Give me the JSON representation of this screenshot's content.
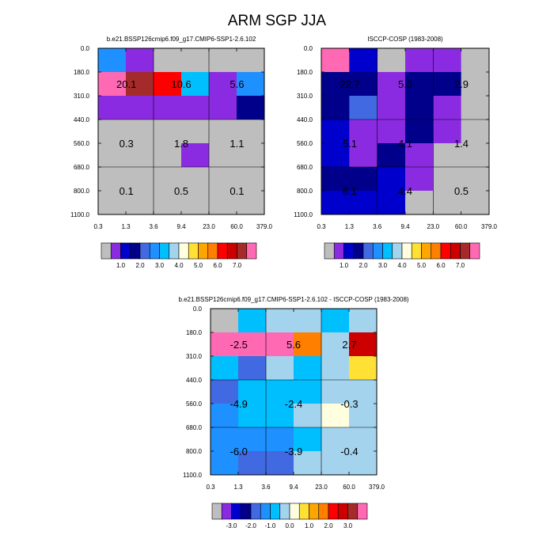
{
  "figure": {
    "title": "ARM SGP JJA"
  },
  "chart_data": [
    {
      "type": "heatmap",
      "title": "b.e21.BSSP126cmip6.f09_g17.CMIP6-SSP1-2.6.102",
      "x_ticks": [
        "0.3",
        "1.3",
        "3.6",
        "9.4",
        "23.0",
        "60.0",
        "379.0"
      ],
      "y_ticks": [
        "0.0",
        "180.0",
        "310.0",
        "440.0",
        "560.0",
        "680.0",
        "800.0",
        "1100.0"
      ],
      "cell_colors": [
        [
          "#1E90FF",
          "#8A2BE2",
          "#BEBEBE",
          "#BEBEBE",
          "#BEBEBE",
          "#BEBEBE"
        ],
        [
          "#FF69B4",
          "#A52A2A",
          "#FF0000",
          "#00BFFF",
          "#8A2BE2",
          "#1E90FF"
        ],
        [
          "#8A2BE2",
          "#8A2BE2",
          "#8A2BE2",
          "#8A2BE2",
          "#8A2BE2",
          "#00008B"
        ],
        [
          "#BEBEBE",
          "#BEBEBE",
          "#BEBEBE",
          "#BEBEBE",
          "#BEBEBE",
          "#BEBEBE"
        ],
        [
          "#BEBEBE",
          "#BEBEBE",
          "#BEBEBE",
          "#8A2BE2",
          "#BEBEBE",
          "#BEBEBE"
        ],
        [
          "#BEBEBE",
          "#BEBEBE",
          "#BEBEBE",
          "#BEBEBE",
          "#BEBEBE",
          "#BEBEBE"
        ],
        [
          "#BEBEBE",
          "#BEBEBE",
          "#BEBEBE",
          "#BEBEBE",
          "#BEBEBE",
          "#BEBEBE"
        ]
      ],
      "box_labels": [
        [
          "20.1",
          "10.6",
          "5.6"
        ],
        [
          "0.3",
          "1.8",
          "1.1"
        ],
        [
          "0.1",
          "0.5",
          "0.1"
        ]
      ],
      "colorbar": {
        "colors": [
          "#BEBEBE",
          "#8A2BE2",
          "#0000CD",
          "#00008B",
          "#4169E1",
          "#1E90FF",
          "#00BFFF",
          "#A4D3EE",
          "#FFFFE0",
          "#FFE135",
          "#FFA500",
          "#FF7F00",
          "#FF0000",
          "#CD0000",
          "#A52A2A",
          "#FF69B4"
        ],
        "labels": [
          "1.0",
          "2.0",
          "3.0",
          "4.0",
          "5.0",
          "6.0",
          "7.0"
        ]
      }
    },
    {
      "type": "heatmap",
      "title": "ISCCP-COSP (1983-2008)",
      "x_ticks": [
        "0.3",
        "1.3",
        "3.6",
        "9.4",
        "23.0",
        "60.0",
        "379.0"
      ],
      "y_ticks": [
        "0.0",
        "180.0",
        "310.0",
        "440.0",
        "560.0",
        "680.0",
        "800.0",
        "1100.0"
      ],
      "cell_colors": [
        [
          "#FF69B4",
          "#0000CD",
          "#BEBEBE",
          "#8A2BE2",
          "#8A2BE2",
          "#BEBEBE"
        ],
        [
          "#00008B",
          "#00008B",
          "#8A2BE2",
          "#00008B",
          "#00008B",
          "#BEBEBE"
        ],
        [
          "#00008B",
          "#4169E1",
          "#8A2BE2",
          "#00008B",
          "#8A2BE2",
          "#BEBEBE"
        ],
        [
          "#0000CD",
          "#8A2BE2",
          "#8A2BE2",
          "#00008B",
          "#8A2BE2",
          "#BEBEBE"
        ],
        [
          "#0000CD",
          "#8A2BE2",
          "#00008B",
          "#8A2BE2",
          "#BEBEBE",
          "#BEBEBE"
        ],
        [
          "#00008B",
          "#00008B",
          "#0000CD",
          "#8A2BE2",
          "#BEBEBE",
          "#BEBEBE"
        ],
        [
          "#0000CD",
          "#0000CD",
          "#0000CD",
          "#BEBEBE",
          "#BEBEBE",
          "#BEBEBE"
        ]
      ],
      "box_labels": [
        [
          "22.7",
          "5.0",
          "2.9"
        ],
        [
          "5.1",
          "4.1",
          "1.4"
        ],
        [
          "6.1",
          "4.4",
          "0.5"
        ]
      ],
      "colorbar": {
        "colors": [
          "#BEBEBE",
          "#8A2BE2",
          "#0000CD",
          "#00008B",
          "#4169E1",
          "#1E90FF",
          "#00BFFF",
          "#A4D3EE",
          "#FFFFE0",
          "#FFE135",
          "#FFA500",
          "#FF7F00",
          "#FF0000",
          "#CD0000",
          "#A52A2A",
          "#FF69B4"
        ],
        "labels": [
          "1.0",
          "2.0",
          "3.0",
          "4.0",
          "5.0",
          "6.0",
          "7.0"
        ]
      }
    },
    {
      "type": "heatmap",
      "title": "b.e21.BSSP126cmip6.f09_g17.CMIP6-SSP1-2.6.102 - ISCCP-COSP (1983-2008)",
      "x_ticks": [
        "0.3",
        "1.3",
        "3.6",
        "9.4",
        "23.0",
        "60.0",
        "379.0"
      ],
      "y_ticks": [
        "0.0",
        "180.0",
        "310.0",
        "440.0",
        "560.0",
        "680.0",
        "800.0",
        "1100.0"
      ],
      "cell_colors": [
        [
          "#BEBEBE",
          "#00BFFF",
          "#A4D3EE",
          "#A4D3EE",
          "#00BFFF",
          "#A4D3EE"
        ],
        [
          "#FF69B4",
          "#FF69B4",
          "#FF69B4",
          "#FF7F00",
          "#A4D3EE",
          "#CD0000"
        ],
        [
          "#00BFFF",
          "#4169E1",
          "#A4D3EE",
          "#00BFFF",
          "#A4D3EE",
          "#FFE135"
        ],
        [
          "#4169E1",
          "#00BFFF",
          "#00BFFF",
          "#00BFFF",
          "#A4D3EE",
          "#A4D3EE"
        ],
        [
          "#1E90FF",
          "#00BFFF",
          "#00BFFF",
          "#A4D3EE",
          "#FFFFE0",
          "#A4D3EE"
        ],
        [
          "#1E90FF",
          "#1E90FF",
          "#1E90FF",
          "#00BFFF",
          "#A4D3EE",
          "#A4D3EE"
        ],
        [
          "#1E90FF",
          "#4169E1",
          "#4169E1",
          "#A4D3EE",
          "#A4D3EE",
          "#A4D3EE"
        ]
      ],
      "box_labels": [
        [
          "-2.5",
          "5.6",
          "2.7"
        ],
        [
          "-4.9",
          "-2.4",
          "-0.3"
        ],
        [
          "-6.0",
          "-3.9",
          "-0.4"
        ]
      ],
      "colorbar": {
        "colors": [
          "#BEBEBE",
          "#8A2BE2",
          "#0000CD",
          "#00008B",
          "#4169E1",
          "#1E90FF",
          "#00BFFF",
          "#A4D3EE",
          "#FFFFE0",
          "#FFE135",
          "#FFA500",
          "#FF7F00",
          "#FF0000",
          "#CD0000",
          "#A52A2A",
          "#FF69B4"
        ],
        "labels": [
          "-3.0",
          "-2.0",
          "-1.0",
          "0.0",
          "1.0",
          "2.0",
          "3.0"
        ]
      }
    }
  ]
}
